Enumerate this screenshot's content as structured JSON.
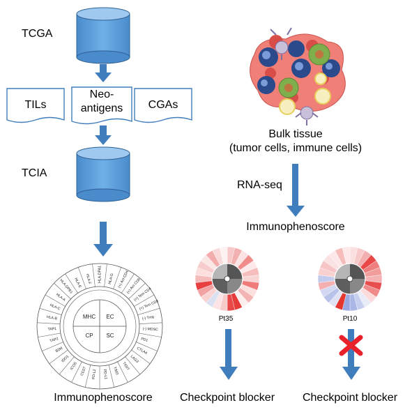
{
  "left_flow": {
    "tcga": "TCGA",
    "tils": "TILs",
    "neo_line1": "Neo-",
    "neo_line2": "antigens",
    "cgas": "CGAs",
    "tcia": "TCIA",
    "bottom_label": "Immunophenoscore",
    "wheel": {
      "center": [
        "MHC",
        "EC",
        "CP",
        "SC"
      ],
      "segments": [
        "(+) Act CD4",
        "(+) Act CD8",
        "(+) Tem CD4",
        "(+) Tem CD8",
        "(-) Treg",
        "(-) MDSC",
        "PD1",
        "CTLA4",
        "LAG3",
        "TIGIT",
        "TIM3",
        "PD-L1",
        "PD-L2",
        "CD27",
        "ICOS",
        "IDO1",
        "B2M",
        "TAP2",
        "TAP1",
        "HLA-B",
        "HLA-C",
        "HLA-A",
        "HLA-DPB1",
        "HLA-E",
        "HLA-F",
        "HLA-DPA1",
        "HLA-G"
      ]
    }
  },
  "right_flow": {
    "bulk_line1": "Bulk tissue",
    "bulk_line2": "(tumor cells, immune cells)",
    "rnaseq": "RNA-seq",
    "immunophenoscore": "Immunophenoscore",
    "pt35": "Pt35",
    "pt10": "Pt10",
    "blocker1": "Checkpoint blocker",
    "blocker2": "Checkpoint blocker"
  },
  "colors": {
    "cylinder_fill": "#5b9bd5",
    "cylinder_top": "#8fbfe8",
    "arrow": "#3f7dbd",
    "cross": "#e8212a"
  }
}
